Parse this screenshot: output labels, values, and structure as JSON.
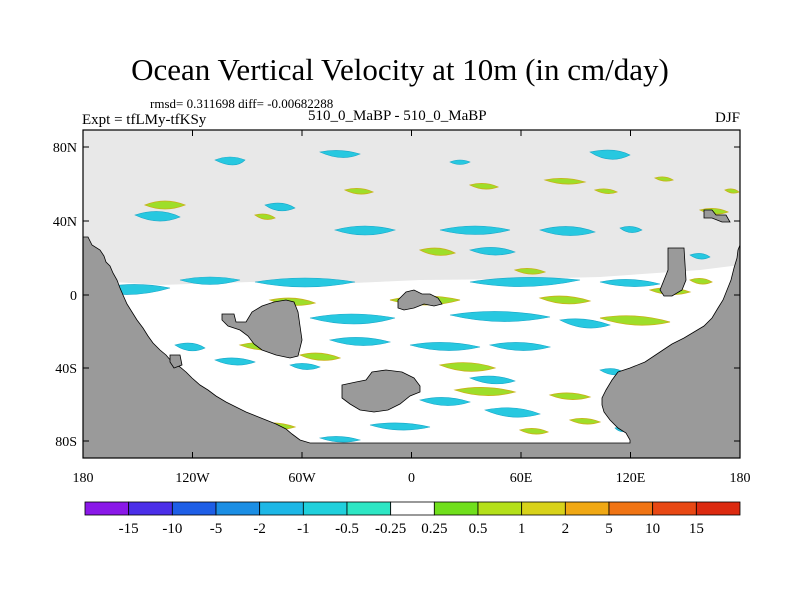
{
  "title": "Ocean Vertical Velocity at 10m (in cm/day)",
  "stats": "rmsd= 0.311698 diff= -0.00682288",
  "experiment": "Expt = tfLMy-tfKSy",
  "subtitle": "510_0_MaBP - 510_0_MaBP",
  "season": "DJF",
  "y_axis": {
    "ticks": [
      "80N",
      "40N",
      "0",
      "40S",
      "80S"
    ]
  },
  "x_axis": {
    "ticks": [
      "180",
      "120W",
      "60W",
      "0",
      "60E",
      "120E",
      "180"
    ]
  },
  "colors": {
    "land": "#9a9a9a",
    "ocean_background": "#e8e8e8",
    "coastline": "#000000"
  },
  "colorbar": {
    "labels": [
      "-15",
      "-10",
      "-5",
      "-2",
      "-1",
      "-0.5",
      "-0.25",
      "0.25",
      "0.5",
      "1",
      "2",
      "5",
      "10",
      "15"
    ],
    "colors": [
      "#8a18e8",
      "#4b2ee8",
      "#1e5ee6",
      "#1b8ee4",
      "#1db7e6",
      "#20d0dc",
      "#2de6c4",
      "#ffffff",
      "#70df1c",
      "#b4e01a",
      "#d8d21a",
      "#f0a814",
      "#f07414",
      "#e84814",
      "#dc2a10"
    ]
  },
  "chart_data": {
    "type": "heatmap",
    "title": "Ocean Vertical Velocity at 10m (in cm/day)",
    "variable": "Ocean Vertical Velocity at 10m",
    "units": "cm/day",
    "season": "DJF",
    "x_ticks": [
      "180",
      "120W",
      "60W",
      "0",
      "60E",
      "120E",
      "180"
    ],
    "y_ticks": [
      "80N",
      "40N",
      "0",
      "40S",
      "80S"
    ],
    "lon_range": [
      -180,
      180
    ],
    "lat_range": [
      -90,
      90
    ],
    "contour_levels": [
      -15,
      -10,
      -5,
      -2,
      -1,
      -0.5,
      -0.25,
      0.25,
      0.5,
      1,
      2,
      5,
      10,
      15
    ],
    "rmsd": 0.311698,
    "diff": -0.00682288
  }
}
